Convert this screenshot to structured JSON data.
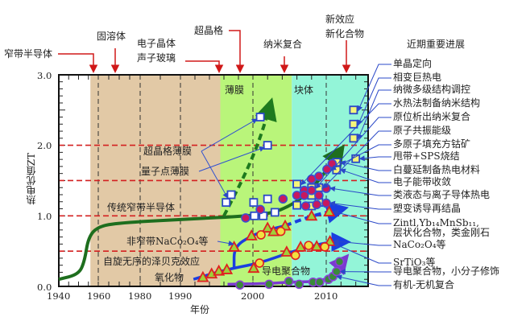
{
  "chart_data": {
    "type": "scatter",
    "title": "",
    "xlabel": "年份",
    "ylabel": "热电优值ZT",
    "xlim": [
      1940,
      2016
    ],
    "ylim": [
      0,
      3.0
    ],
    "xticks": [
      "1940",
      "1960",
      "1980",
      "1990",
      "2000",
      "2010"
    ],
    "yticks": [
      "0.0",
      "1.0",
      "2.0",
      "3.0"
    ],
    "reference_lines_zt": [
      0.5,
      1.0,
      1.5,
      2.0
    ],
    "vertical_lines_year": [
      1960,
      1980,
      1990,
      2000,
      2010
    ],
    "regions": [
      {
        "from": 1956,
        "to": 1995.5,
        "color": "#e2c9a6",
        "label": ""
      },
      {
        "from": 1995.5,
        "to": 2005.3,
        "color": "#b9f57a",
        "label": "薄膜"
      },
      {
        "from": 2005.3,
        "to": 2016,
        "color": "#93f5d8",
        "label": "块体"
      }
    ],
    "curves": [
      {
        "name": "传统窄带半导体",
        "color": "#1e6e1e",
        "style": "solid",
        "arrow": true,
        "points": [
          [
            1940,
            0.1
          ],
          [
            1950,
            0.17
          ],
          [
            1953,
            0.35
          ],
          [
            1955,
            0.7
          ],
          [
            1960,
            0.85
          ],
          [
            1970,
            0.9
          ],
          [
            1990,
            0.95
          ],
          [
            2000,
            1.0
          ],
          [
            2004,
            1.07
          ],
          [
            2008,
            1.35
          ],
          [
            2012,
            1.94
          ]
        ]
      },
      {
        "name": "超晶格/量子点薄膜",
        "color": "#1e7a1e",
        "style": "dashed",
        "arrow": true,
        "points": [
          [
            1996,
            1.0
          ],
          [
            1999,
            1.6
          ],
          [
            2001,
            2.1
          ],
          [
            2002.4,
            2.59
          ]
        ]
      },
      {
        "name": "非窄带NaCo2O4",
        "color": "#1a3fe0",
        "style": "solid",
        "arrow": false,
        "points": [
          [
            1997.4,
            0.26
          ],
          [
            1997.4,
            0.56
          ],
          [
            1999.8,
            0.72
          ],
          [
            2002,
            0.8
          ],
          [
            2004.4,
            0.86
          ]
        ]
      },
      {
        "name": "非窄带NaCo2O4-趋势",
        "color": "#1a3fe0",
        "style": "dashed",
        "arrow": true,
        "points": [
          [
            2004.4,
            0.86
          ],
          [
            2008,
            1.0
          ],
          [
            2012.2,
            1.1
          ]
        ]
      },
      {
        "name": "氧化物",
        "color": "#1a3fe0",
        "style": "solid",
        "arrow": true,
        "points": [
          [
            1991.8,
            0.1
          ],
          [
            1995,
            0.2
          ],
          [
            1997.4,
            0.26
          ],
          [
            2000.9,
            0.33
          ],
          [
            2005,
            0.48
          ],
          [
            2008,
            0.57
          ],
          [
            2010.5,
            0.63
          ],
          [
            2012.6,
            0.63
          ]
        ]
      },
      {
        "name": "导电聚合物",
        "color": "#7a3ad0",
        "style": "solid",
        "arrow": true,
        "points": [
          [
            1996.5,
            0.03
          ],
          [
            2002,
            0.04
          ],
          [
            2005,
            0.06
          ],
          [
            2009,
            0.07
          ],
          [
            2010.8,
            0.14
          ],
          [
            2011.8,
            0.3
          ],
          [
            2012.6,
            0.4
          ]
        ]
      }
    ],
    "series": [
      {
        "name": "薄膜方块",
        "marker": "square",
        "fill": "#ffffff",
        "stroke": "#2a48c8",
        "points": [
          [
            2001,
            2.4
          ],
          [
            2002,
            2.0
          ],
          [
            1997,
            1.3
          ],
          [
            1996.3,
            1.19
          ],
          [
            2000.1,
            1.19
          ],
          [
            2002,
            1.24
          ],
          [
            2000.2,
            1.0
          ],
          [
            2001.4,
            1.0
          ],
          [
            2003,
            1.05
          ]
        ]
      },
      {
        "name": "块体方块",
        "marker": "square",
        "fill": "#f5f57a",
        "stroke": "#2a48c8",
        "points": [
          [
            2006,
            1.45
          ],
          [
            2006,
            1.15
          ],
          [
            2008,
            1.14
          ],
          [
            2008,
            1.29
          ],
          [
            2008,
            1.4
          ],
          [
            2009,
            1.4
          ],
          [
            2009,
            1.19
          ],
          [
            2011.4,
            1.76
          ],
          [
            2011.4,
            1.65
          ],
          [
            2014,
            1.81
          ],
          [
            2013.7,
            2.5
          ],
          [
            2013.7,
            2.3
          ],
          [
            2013.7,
            2.1
          ]
        ]
      },
      {
        "name": "圆点",
        "marker": "circle",
        "fill": "#c8185e",
        "stroke": "#3a50d0",
        "points": [
          [
            1999,
            0.97
          ],
          [
            2001,
            1.09
          ],
          [
            2004.1,
            1.24
          ],
          [
            2006,
            1.29
          ],
          [
            2007,
            1.36
          ],
          [
            2007,
            1.29
          ],
          [
            2008,
            1.36
          ],
          [
            2008,
            1.52
          ],
          [
            2009,
            1.29
          ],
          [
            2009,
            1.56
          ],
          [
            2010,
            1.39
          ],
          [
            2010,
            1.18
          ],
          [
            2007.2,
            1.14
          ],
          [
            2008.7,
            1.16
          ],
          [
            2010.1,
            1.66
          ],
          [
            2010.8,
            1.74
          ]
        ]
      },
      {
        "name": "三角形",
        "marker": "triangle",
        "fill": "#9fd13a",
        "stroke": "#e02020",
        "points": [
          [
            1993.1,
            0.13
          ],
          [
            1994.3,
            0.18
          ],
          [
            1995.3,
            0.22
          ],
          [
            1996.4,
            0.24
          ],
          [
            1997.4,
            0.56
          ],
          [
            1999.8,
            0.72
          ],
          [
            2002,
            0.83
          ],
          [
            2002.8,
            0.78
          ],
          [
            2004.4,
            0.86
          ],
          [
            2008,
            1.0
          ],
          [
            2010.4,
            1.06
          ],
          [
            2000.1,
            0.26
          ],
          [
            2004.6,
            0.49
          ],
          [
            2006.5,
            0.56
          ],
          [
            2008.7,
            0.57
          ],
          [
            2010.5,
            0.64
          ]
        ]
      },
      {
        "name": "氧化物圆点",
        "marker": "circle",
        "fill": "#f2e040",
        "stroke": "#e02020",
        "points": [
          [
            2001.1,
            0.73
          ],
          [
            2003.8,
            0.78
          ],
          [
            2000.9,
            0.33
          ],
          [
            2005.8,
            0.44
          ],
          [
            2007.6,
            0.58
          ],
          [
            2009.8,
            0.56
          ]
        ]
      },
      {
        "name": "聚合物圆点",
        "marker": "circle",
        "fill": "#3a8a3a",
        "stroke": "#8a40d8",
        "points": [
          [
            1998.2,
            0.02
          ],
          [
            2002.2,
            0.03
          ],
          [
            2004.9,
            0.07
          ],
          [
            2006.3,
            0.03
          ],
          [
            2008.2,
            0.06
          ],
          [
            2009.1,
            0.06
          ],
          [
            2010.3,
            0.1
          ],
          [
            2010.9,
            0.14
          ],
          [
            2011.4,
            0.21
          ],
          [
            2011.8,
            0.35
          ]
        ]
      }
    ],
    "plot_labels": {
      "film": "薄膜",
      "bulk": "块体",
      "superlattice_film": "超晶格薄膜",
      "quantum_dot_film": "量子点薄膜",
      "traditional": "传统窄带半导体",
      "non_narrow": "非窄带NaCo₂O₄等",
      "spin": "自旋无序的泽贝克效应",
      "oxide": "氧化物",
      "polymer": "导电聚合物"
    },
    "milestones": [
      {
        "label": "窄带半导体",
        "year": 1958
      },
      {
        "label": "固溶体",
        "year": 1968
      },
      {
        "label": "电子晶体\n声子玻璃",
        "year": 1995.5
      },
      {
        "label": "超晶格",
        "year": 1998
      },
      {
        "label": "纳米复合",
        "year": 2004.3
      },
      {
        "label": "新效应\n新化合物",
        "year": 2011.5
      }
    ],
    "recent_progress": {
      "title": "近期重要进展",
      "items": [
        {
          "label": "单晶定向",
          "target": [
            2013.7,
            2.5
          ]
        },
        {
          "label": "相变巨热电",
          "target": [
            2013.7,
            2.3
          ]
        },
        {
          "label": "纳微多级结构调控",
          "target": [
            2013.7,
            2.1
          ]
        },
        {
          "label": "水热法制备纳米结构",
          "target": [
            2006,
            1.45
          ]
        },
        {
          "label": "原位析出纳米复合",
          "target": [
            2008,
            1.4
          ]
        },
        {
          "label": "原子共振能级",
          "target": [
            2009,
            1.4
          ]
        },
        {
          "label": "多原子填充方钴矿",
          "target": [
            2010.1,
            1.66
          ]
        },
        {
          "label": "甩带+SPS烧结",
          "target": [
            2014,
            1.81
          ]
        },
        {
          "label": "白蔓延制备热电材料",
          "target": [
            2011.4,
            1.76
          ]
        },
        {
          "label": "电子能带收敛",
          "target": [
            2011.4,
            1.65
          ]
        },
        {
          "label": "类液态与离子导体热电",
          "target": [
            2010,
            1.39
          ]
        },
        {
          "label": "塑变诱导再结晶",
          "target": [
            2010,
            1.18
          ]
        },
        {
          "label": "Zintl,Yb₁₄MnSb₁₁,",
          "target": [
            2010.4,
            1.06
          ]
        },
        {
          "label": "层状化合物，类金刚石",
          "target": null
        },
        {
          "label": "NaCo₂O₄等",
          "target": [
            2010.5,
            0.64
          ]
        },
        {
          "label": "SrTiO₃等",
          "target": [
            2010.5,
            0.6
          ]
        },
        {
          "label": "导电聚合物，小分子修饰",
          "target": [
            2011.4,
            0.21
          ]
        },
        {
          "label": "有机-无机复合",
          "target": [
            2010.9,
            0.14
          ]
        }
      ]
    }
  }
}
